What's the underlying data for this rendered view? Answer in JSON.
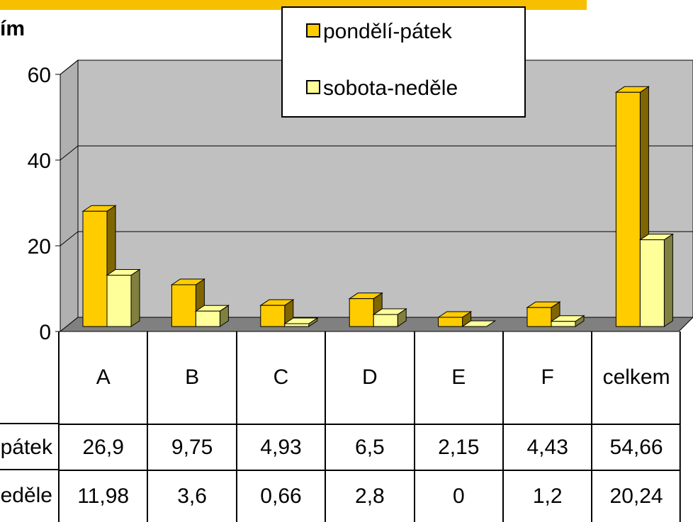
{
  "chart_data": {
    "type": "bar3d",
    "title": "ím",
    "categories": [
      "A",
      "B",
      "C",
      "D",
      "E",
      "F",
      "celkem"
    ],
    "series": [
      {
        "name": "pondělí-pátek",
        "color": "#ffcc00",
        "side": "#806600",
        "values": [
          26.9,
          9.75,
          4.93,
          6.5,
          2.15,
          4.43,
          54.66
        ],
        "value_labels": [
          "26,9",
          "9,75",
          "4,93",
          "6,5",
          "2,15",
          "4,43",
          "54,66"
        ]
      },
      {
        "name": "sobota-neděle",
        "color": "#ffff99",
        "side": "#808040",
        "values": [
          11.98,
          3.6,
          0.66,
          2.8,
          0,
          1.2,
          20.24
        ],
        "value_labels": [
          "11,98",
          "3,6",
          "0,66",
          "2,8",
          "0",
          "1,2",
          "20,24"
        ]
      }
    ],
    "ylim": [
      0,
      60
    ],
    "yticks": [
      0,
      20,
      40,
      60
    ],
    "grid": true,
    "legend": "top"
  }
}
